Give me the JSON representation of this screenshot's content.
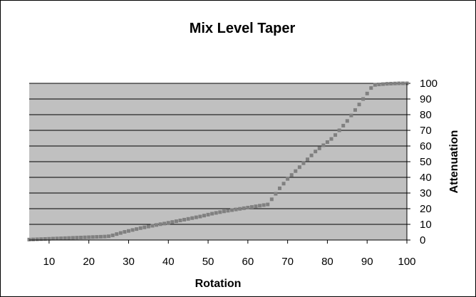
{
  "chart_data": {
    "type": "line",
    "title": "Mix Level Taper",
    "xlabel": "Rotation",
    "ylabel": "Attenuation",
    "xlim": [
      5,
      100
    ],
    "ylim": [
      0,
      100
    ],
    "x_ticks": [
      10,
      20,
      30,
      40,
      50,
      60,
      70,
      80,
      90,
      100
    ],
    "y_ticks": [
      0,
      10,
      20,
      30,
      40,
      50,
      60,
      70,
      80,
      90,
      100
    ],
    "y_axis_side": "right",
    "grid": "horizontal",
    "legend": "none",
    "colors": {
      "plot_bg": "#c0c0c0",
      "series": "#808080",
      "grid": "#000000"
    },
    "series": [
      {
        "x": [
          5,
          6,
          7,
          8,
          9,
          10,
          11,
          12,
          13,
          14,
          15,
          16,
          17,
          18,
          19,
          20,
          21,
          22,
          23,
          24,
          25,
          26,
          27,
          28,
          29,
          30,
          31,
          32,
          33,
          34,
          35,
          36,
          37,
          38,
          39,
          40,
          41,
          42,
          43,
          44,
          45,
          46,
          47,
          48,
          49,
          50,
          51,
          52,
          53,
          54,
          55,
          56,
          57,
          58,
          59,
          60,
          61,
          62,
          63,
          64,
          65,
          66,
          67,
          68,
          69,
          70,
          71,
          72,
          73,
          74,
          75,
          76,
          77,
          78,
          79,
          80,
          81,
          82,
          83,
          84,
          85,
          86,
          87,
          88,
          89,
          90,
          91,
          92,
          93,
          94,
          95,
          96,
          97,
          98,
          99,
          100
        ],
        "values": [
          0.3,
          0.4,
          0.5,
          0.6,
          0.7,
          0.8,
          0.9,
          1.0,
          1.1,
          1.2,
          1.3,
          1.4,
          1.5,
          1.6,
          1.7,
          1.8,
          1.9,
          2.0,
          2.1,
          2.2,
          2.4,
          3.0,
          3.8,
          4.5,
          5.2,
          5.8,
          6.4,
          7.0,
          7.6,
          8.1,
          8.6,
          9.1,
          9.6,
          10.1,
          10.5,
          11.0,
          11.5,
          12.0,
          12.5,
          13.0,
          13.5,
          14.0,
          14.5,
          15.0,
          15.6,
          16.2,
          16.8,
          17.3,
          17.8,
          18.3,
          18.7,
          19.1,
          19.5,
          19.9,
          20.3,
          20.7,
          21.1,
          21.5,
          21.9,
          22.3,
          22.7,
          26.0,
          29.5,
          33.0,
          36.0,
          39.0,
          41.5,
          44.0,
          46.5,
          49.0,
          51.5,
          54.0,
          56.5,
          58.5,
          60.5,
          62.5,
          64.5,
          67.0,
          70.0,
          73.0,
          76.0,
          79.5,
          83.0,
          86.5,
          90.0,
          93.5,
          97.0,
          99.0,
          99.3,
          99.5,
          99.7,
          99.8,
          99.9,
          100.0,
          100.0,
          100.0
        ]
      }
    ]
  }
}
